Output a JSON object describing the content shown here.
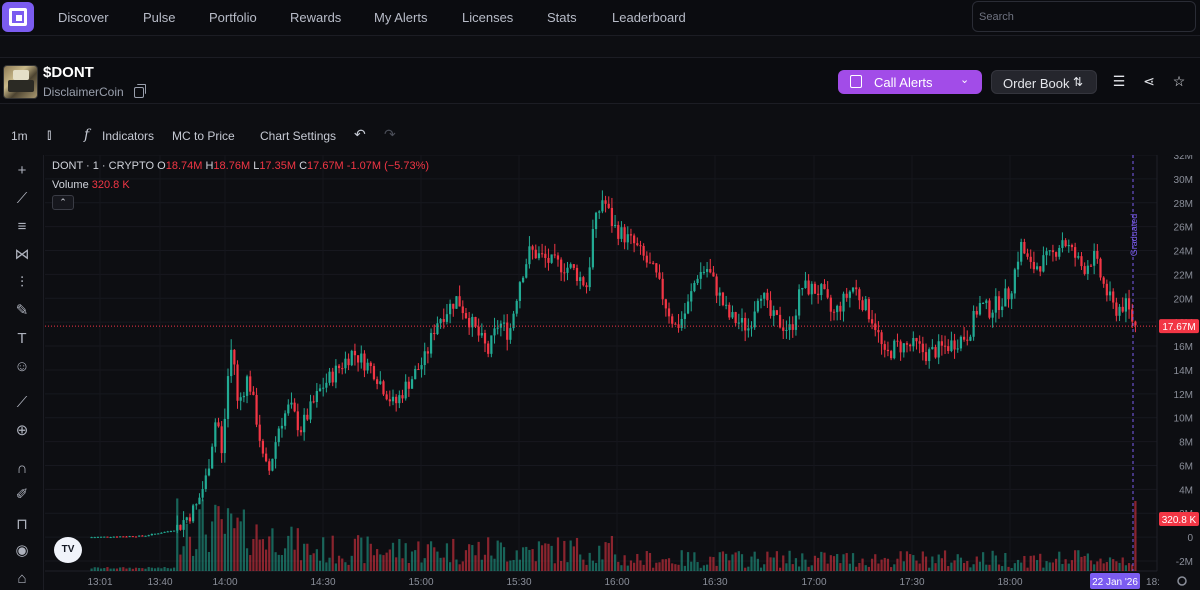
{
  "nav": {
    "items": [
      "Discover",
      "Pulse",
      "Portfolio",
      "Rewards",
      "My Alerts",
      "Licenses",
      "Stats",
      "Leaderboard"
    ],
    "search_placeholder": "Search"
  },
  "token": {
    "ticker": "$DONT",
    "name": "DisclaimerCoin"
  },
  "header_actions": {
    "call_alerts": "Call Alerts",
    "order_book": "Order Book"
  },
  "chart_toolbar": {
    "interval": "1m",
    "indicators": "Indicators",
    "mc_to_price": "MC to Price",
    "chart_settings": "Chart Settings"
  },
  "legend": {
    "symbol": "DONT · 1 · CRYPTO",
    "open_label": "O",
    "open": "18.74M",
    "high_label": "H",
    "high": "18.76M",
    "low_label": "L",
    "low": "17.35M",
    "close_label": "C",
    "close": "17.67M",
    "change": "-1.07M (−5.73%)",
    "volume_label": "Volume",
    "volume": "320.8 K"
  },
  "tv_logo": "TV",
  "colors": {
    "up": "#22ab94",
    "down": "#f23645",
    "accent": "#a24ce8",
    "graduated": "#7b5cf0"
  },
  "chart_data": {
    "type": "candlestick",
    "y_ticks": [
      "32M",
      "30M",
      "28M",
      "26M",
      "24M",
      "22M",
      "20M",
      "18M",
      "16M",
      "14M",
      "12M",
      "10M",
      "8M",
      "6M",
      "4M",
      "2M",
      "0",
      "-2M"
    ],
    "x_ticks": [
      "13:01",
      "13:40",
      "14:00",
      "14:30",
      "15:00",
      "15:30",
      "16:00",
      "16:30",
      "17:00",
      "17:30",
      "18:00"
    ],
    "last_price_label": "17.67M",
    "last_volume_label": "320.8 K",
    "date_label": "22 Jan '26",
    "date_tail": "18:",
    "event_label": "Graduated",
    "ylim_millions": [
      -2,
      32
    ],
    "grid": true,
    "market_cap_path_millions": [
      [
        0.0,
        0.0
      ],
      [
        0.05,
        0.1
      ],
      [
        0.08,
        0.6
      ],
      [
        0.1,
        2.5
      ],
      [
        0.11,
        5.0
      ],
      [
        0.12,
        10.5
      ],
      [
        0.125,
        6.5
      ],
      [
        0.13,
        13.0
      ],
      [
        0.135,
        16.5
      ],
      [
        0.14,
        11.0
      ],
      [
        0.15,
        13.5
      ],
      [
        0.16,
        9.0
      ],
      [
        0.165,
        6.0
      ],
      [
        0.17,
        5.5
      ],
      [
        0.18,
        9.5
      ],
      [
        0.19,
        11.0
      ],
      [
        0.2,
        9.0
      ],
      [
        0.22,
        12.5
      ],
      [
        0.24,
        14.5
      ],
      [
        0.25,
        15.5
      ],
      [
        0.27,
        14.0
      ],
      [
        0.29,
        11.0
      ],
      [
        0.3,
        12.5
      ],
      [
        0.32,
        15.0
      ],
      [
        0.33,
        18.0
      ],
      [
        0.35,
        20.0
      ],
      [
        0.37,
        17.0
      ],
      [
        0.38,
        15.5
      ],
      [
        0.39,
        18.0
      ],
      [
        0.4,
        17.0
      ],
      [
        0.41,
        21.5
      ],
      [
        0.42,
        24.0
      ],
      [
        0.44,
        23.0
      ],
      [
        0.46,
        22.5
      ],
      [
        0.475,
        21.0
      ],
      [
        0.48,
        25.5
      ],
      [
        0.49,
        28.5
      ],
      [
        0.5,
        26.0
      ],
      [
        0.52,
        24.5
      ],
      [
        0.54,
        22.0
      ],
      [
        0.55,
        19.5
      ],
      [
        0.56,
        17.5
      ],
      [
        0.57,
        19.0
      ],
      [
        0.58,
        22.0
      ],
      [
        0.59,
        22.5
      ],
      [
        0.61,
        18.5
      ],
      [
        0.63,
        17.5
      ],
      [
        0.64,
        21.0
      ],
      [
        0.65,
        18.5
      ],
      [
        0.67,
        17.3
      ],
      [
        0.68,
        21.0
      ],
      [
        0.7,
        20.5
      ],
      [
        0.71,
        18.5
      ],
      [
        0.73,
        21.0
      ],
      [
        0.75,
        18.0
      ],
      [
        0.76,
        15.0
      ],
      [
        0.77,
        16.0
      ],
      [
        0.79,
        16.0
      ],
      [
        0.8,
        15.3
      ],
      [
        0.82,
        16.0
      ],
      [
        0.84,
        17.0
      ],
      [
        0.85,
        19.5
      ],
      [
        0.86,
        19.0
      ],
      [
        0.88,
        20.5
      ],
      [
        0.89,
        24.5
      ],
      [
        0.9,
        22.5
      ],
      [
        0.92,
        23.5
      ],
      [
        0.93,
        25.0
      ],
      [
        0.95,
        22.5
      ],
      [
        0.96,
        23.5
      ],
      [
        0.97,
        21.0
      ],
      [
        0.98,
        19.0
      ],
      [
        0.99,
        19.5
      ],
      [
        1.0,
        17.67
      ]
    ]
  }
}
